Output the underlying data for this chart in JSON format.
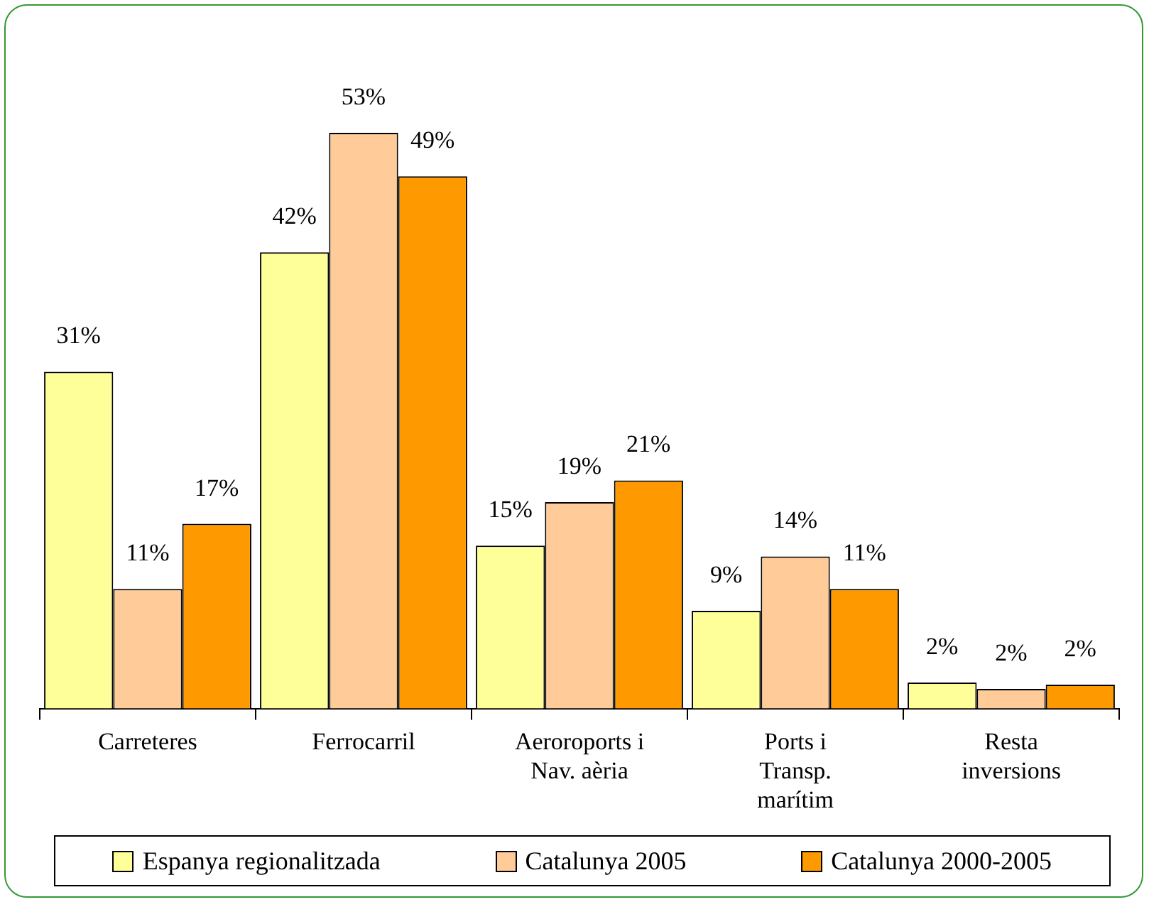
{
  "chart_data": {
    "type": "bar",
    "categories": [
      "Carreteres",
      "Ferrocarril",
      "Aeroroports i\nNav. aèria",
      "Ports i\nTransp.\nmarítim",
      "Resta\ninversions"
    ],
    "series": [
      {
        "name": "Espanya regionalitzada",
        "color": "#ffff99",
        "values": [
          31,
          42,
          15,
          9,
          2.4
        ],
        "value_labels": [
          "31%",
          "42%",
          "15%",
          "9%",
          "2%"
        ]
      },
      {
        "name": "Catalunya 2005",
        "color": "#ffcc99",
        "values": [
          11,
          53,
          19,
          14,
          1.8
        ],
        "value_labels": [
          "11%",
          "53%",
          "19%",
          "14%",
          "2%"
        ]
      },
      {
        "name": "Catalunya 2000-2005",
        "color": "#ff9900",
        "values": [
          17,
          49,
          21,
          11,
          2.2
        ],
        "value_labels": [
          "17%",
          "49%",
          "21%",
          "11%",
          "2%"
        ]
      }
    ],
    "legend": "bottom"
  }
}
